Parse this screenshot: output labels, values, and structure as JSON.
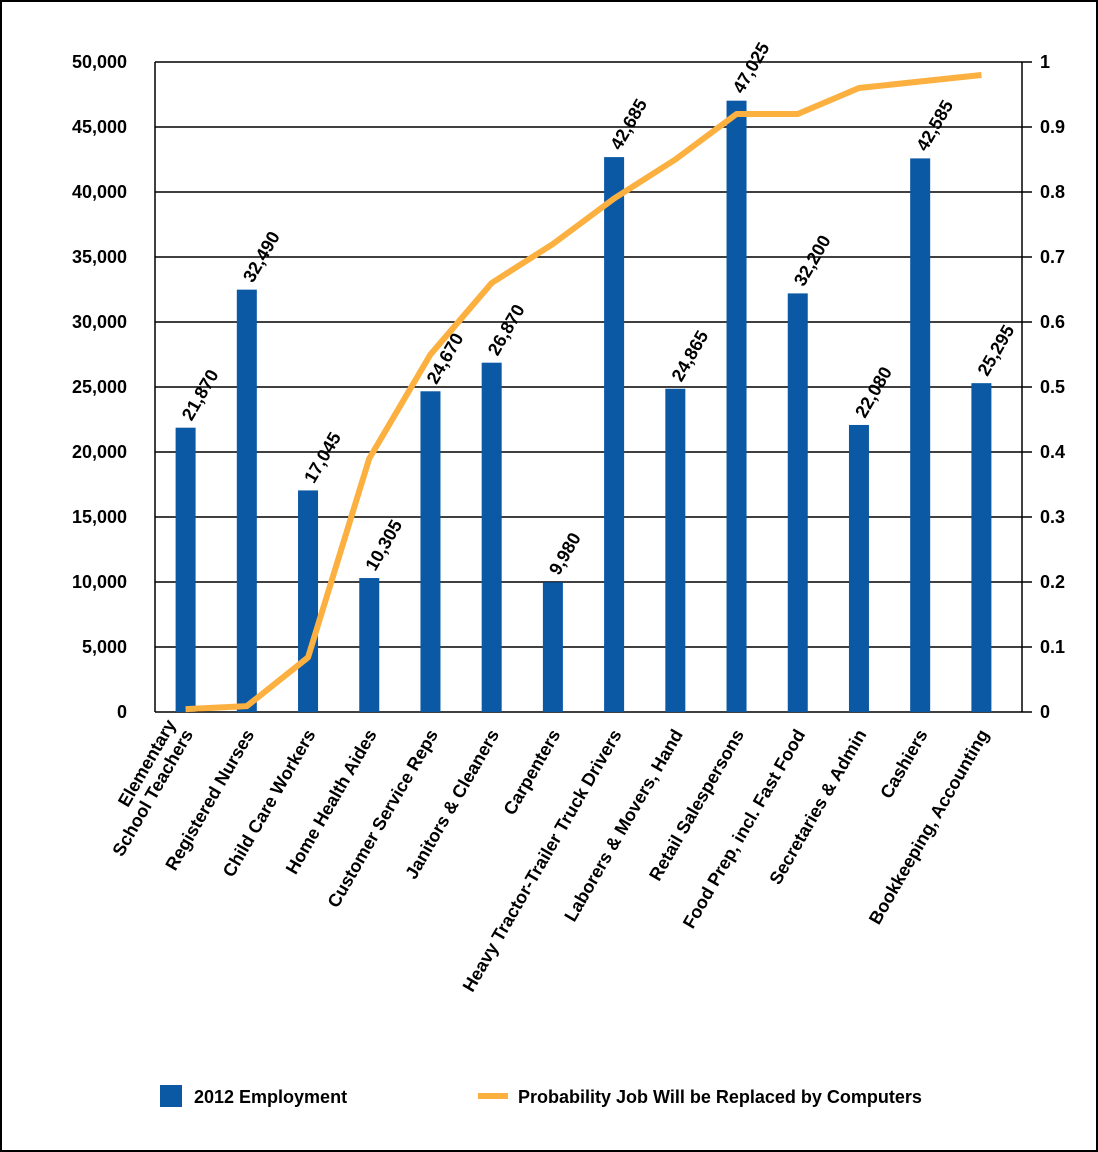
{
  "chart_data": {
    "type": "bar_line",
    "categories": [
      "Elementary\nSchool Teachers",
      "Registered Nurses",
      "Child Care Workers",
      "Home Health Aides",
      "Customer Service Reps",
      "Janitors & Cleaners",
      "Carpenters",
      "Heavy Tractor-Trailer Truck Drivers",
      "Laborers & Movers, Hand",
      "Retail Salespersons",
      "Food Prep, incl. Fast Food",
      "Secretaries & Admin",
      "Cashiers",
      "Bookkeeping, Accounting"
    ],
    "series": [
      {
        "name": "2012 Employment",
        "color": "#0b58a5",
        "type": "bar",
        "values": [
          21870,
          32490,
          17045,
          10305,
          24670,
          26870,
          9980,
          42685,
          24865,
          47025,
          32200,
          22080,
          42585,
          25295
        ],
        "value_labels": [
          "21,870",
          "32,490",
          "17,045",
          "10,305",
          "24,670",
          "26,870",
          "9,980",
          "42,685",
          "24,865",
          "47,025",
          "32,200",
          "22,080",
          "42,585",
          "25,295"
        ]
      },
      {
        "name": "Probability Job Will be Replaced by Computers",
        "color": "#fbb040",
        "type": "line",
        "axis": "y2",
        "values": [
          0.0044,
          0.009,
          0.084,
          0.39,
          0.55,
          0.66,
          0.72,
          0.79,
          0.85,
          0.92,
          0.92,
          0.96,
          0.97,
          0.98
        ]
      }
    ],
    "ylim": [
      0,
      50000
    ],
    "yticks": [
      0,
      {
        "value": 5000,
        "label": "5,000"
      },
      {
        "value": 10000,
        "label": "10,000"
      },
      {
        "value": 15000,
        "label": "15,000"
      },
      {
        "value": 20000,
        "label": "20,000"
      },
      {
        "value": 25000,
        "label": "25,000"
      },
      {
        "value": 30000,
        "label": "30,000"
      },
      {
        "value": 35000,
        "label": "35,000"
      },
      {
        "value": 40000,
        "label": "40,000"
      },
      {
        "value": 45000,
        "label": "45,000"
      },
      {
        "value": 50000,
        "label": "50,000"
      }
    ],
    "y2lim": [
      0,
      1
    ],
    "y2ticks": [
      0,
      0.1,
      0.2,
      0.3,
      0.4,
      0.5,
      0.6,
      0.7,
      0.8,
      0.9,
      1
    ],
    "grid": true,
    "legend": "bottom"
  }
}
